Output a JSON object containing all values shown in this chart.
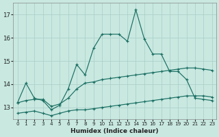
{
  "xlabel": "Humidex (Indice chaleur)",
  "bg_color": "#c8e8e0",
  "grid_color": "#a8cec6",
  "line_color": "#1a6e62",
  "ylim": [
    12.5,
    17.5
  ],
  "xlim": [
    -0.5,
    23.5
  ],
  "yticks": [
    13,
    14,
    15,
    16,
    17
  ],
  "xticks": [
    0,
    1,
    2,
    3,
    4,
    5,
    6,
    7,
    8,
    9,
    10,
    11,
    12,
    13,
    14,
    15,
    16,
    17,
    18,
    19,
    20,
    21,
    22,
    23
  ],
  "curve_top_x": [
    0,
    1,
    2,
    3,
    4,
    5,
    6,
    7,
    8,
    9,
    10,
    11,
    12,
    13,
    14,
    15,
    16,
    17,
    18,
    19,
    20,
    21,
    22,
    23
  ],
  "curve_top_y": [
    13.2,
    14.05,
    13.4,
    13.3,
    12.9,
    13.1,
    13.8,
    14.85,
    14.4,
    15.55,
    16.15,
    16.15,
    16.15,
    15.85,
    17.2,
    15.95,
    15.3,
    15.3,
    14.55,
    14.55,
    14.2,
    13.4,
    13.35,
    13.3
  ],
  "curve_mid_x": [
    0,
    1,
    2,
    3,
    4,
    5,
    6,
    7,
    8,
    9,
    10,
    11,
    12,
    13,
    14,
    15,
    16,
    17,
    18,
    19,
    20,
    21,
    22,
    23
  ],
  "curve_mid_y": [
    13.2,
    13.3,
    13.35,
    13.35,
    13.05,
    13.15,
    13.4,
    13.8,
    14.05,
    14.1,
    14.2,
    14.25,
    14.3,
    14.35,
    14.4,
    14.45,
    14.5,
    14.55,
    14.6,
    14.65,
    14.7,
    14.7,
    14.65,
    14.6
  ],
  "curve_bot_x": [
    0,
    1,
    2,
    3,
    4,
    5,
    6,
    7,
    8,
    9,
    10,
    11,
    12,
    13,
    14,
    15,
    16,
    17,
    18,
    19,
    20,
    21,
    22,
    23
  ],
  "curve_bot_y": [
    12.75,
    12.8,
    12.85,
    12.75,
    12.65,
    12.75,
    12.85,
    12.9,
    12.9,
    12.95,
    13.0,
    13.05,
    13.1,
    13.15,
    13.2,
    13.25,
    13.3,
    13.35,
    13.4,
    13.45,
    13.5,
    13.5,
    13.5,
    13.45
  ]
}
